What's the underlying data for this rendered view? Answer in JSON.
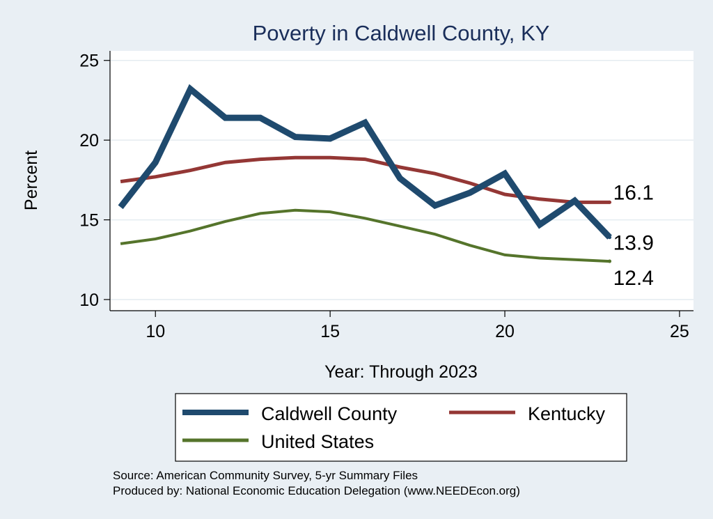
{
  "chart_data": {
    "type": "line",
    "title": "Poverty in Caldwell County, KY",
    "xlabel": "Year: Through 2023",
    "ylabel": "Percent",
    "xlim": [
      8.7,
      25.4
    ],
    "ylim": [
      9.3,
      25.6
    ],
    "x_ticks": [
      10,
      15,
      20,
      25
    ],
    "y_ticks": [
      10,
      15,
      20,
      25
    ],
    "x_tick_labels": [
      "10",
      "15",
      "20",
      "25"
    ],
    "y_tick_labels": [
      "10",
      "15",
      "20",
      "25"
    ],
    "grid": true,
    "legend_position": "bottom",
    "series": [
      {
        "name": "Caldwell County",
        "color": "#1f4a6e",
        "x": [
          9,
          10,
          11,
          12,
          13,
          14,
          15,
          16,
          17,
          18,
          19,
          20,
          21,
          22,
          23
        ],
        "values": [
          15.8,
          18.6,
          23.2,
          21.4,
          21.4,
          20.2,
          20.1,
          21.1,
          17.6,
          15.9,
          16.7,
          17.9,
          14.7,
          16.2,
          13.9
        ],
        "end_label": "13.9"
      },
      {
        "name": "Kentucky",
        "color": "#943735",
        "x": [
          9,
          10,
          11,
          12,
          13,
          14,
          15,
          16,
          17,
          18,
          19,
          20,
          21,
          22,
          23
        ],
        "values": [
          17.4,
          17.7,
          18.1,
          18.6,
          18.8,
          18.9,
          18.9,
          18.8,
          18.3,
          17.9,
          17.3,
          16.6,
          16.3,
          16.1,
          16.1
        ],
        "end_label": "16.1"
      },
      {
        "name": "United States",
        "color": "#55742b",
        "x": [
          9,
          10,
          11,
          12,
          13,
          14,
          15,
          16,
          17,
          18,
          19,
          20,
          21,
          22,
          23
        ],
        "values": [
          13.5,
          13.8,
          14.3,
          14.9,
          15.4,
          15.6,
          15.5,
          15.1,
          14.6,
          14.1,
          13.4,
          12.8,
          12.6,
          12.5,
          12.4
        ],
        "end_label": "12.4"
      }
    ],
    "source_lines": [
      "Source: American Community Survey, 5-yr Summary Files",
      "Produced by: National Economic Education Delegation (www.NEEDEcon.org)"
    ]
  }
}
